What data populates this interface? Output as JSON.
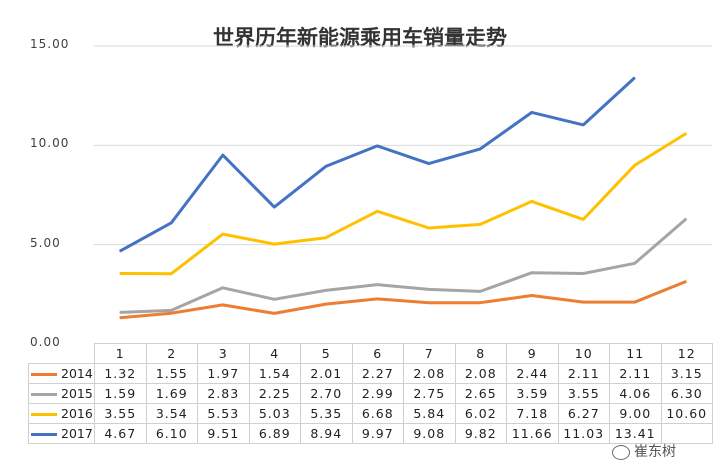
{
  "chart_data": {
    "type": "line",
    "title": "世界历年新能源乘用车销量走势",
    "categories": [
      "1",
      "2",
      "3",
      "4",
      "5",
      "6",
      "7",
      "8",
      "9",
      "10",
      "11",
      "12"
    ],
    "ylim": [
      0,
      15
    ],
    "yticks": [
      "0.00",
      "5.00",
      "10.00",
      "15.00"
    ],
    "grid": true,
    "legend": "data-table",
    "series": [
      {
        "name": "2014",
        "color": "#ED7D31",
        "values": [
          1.32,
          1.55,
          1.97,
          1.54,
          2.01,
          2.27,
          2.08,
          2.08,
          2.44,
          2.11,
          2.11,
          3.15
        ],
        "labels": [
          "1.32",
          "1.55",
          "1.97",
          "1.54",
          "2.01",
          "2.27",
          "2.08",
          "2.08",
          "2.44",
          "2.11",
          "2.11",
          "3.15"
        ]
      },
      {
        "name": "2015",
        "color": "#A5A5A5",
        "values": [
          1.59,
          1.69,
          2.83,
          2.25,
          2.7,
          2.99,
          2.75,
          2.65,
          3.59,
          3.55,
          4.06,
          6.3
        ],
        "labels": [
          "1.59",
          "1.69",
          "2.83",
          "2.25",
          "2.70",
          "2.99",
          "2.75",
          "2.65",
          "3.59",
          "3.55",
          "4.06",
          "6.30"
        ]
      },
      {
        "name": "2016",
        "color": "#FFC000",
        "values": [
          3.55,
          3.54,
          5.53,
          5.03,
          5.35,
          6.68,
          5.84,
          6.02,
          7.18,
          6.27,
          9.0,
          10.6
        ],
        "labels": [
          "3.55",
          "3.54",
          "5.53",
          "5.03",
          "5.35",
          "6.68",
          "5.84",
          "6.02",
          "7.18",
          "6.27",
          "9.00",
          "10.60"
        ]
      },
      {
        "name": "2017",
        "color": "#4472C4",
        "values": [
          4.67,
          6.1,
          9.51,
          6.89,
          8.94,
          9.97,
          9.08,
          9.82,
          11.66,
          11.03,
          13.41,
          null
        ],
        "labels": [
          "4.67",
          "6.10",
          "9.51",
          "6.89",
          "8.94",
          "9.97",
          "9.08",
          "9.82",
          "11.66",
          "11.03",
          "13.41",
          ""
        ]
      }
    ]
  },
  "watermark": "崔东树"
}
